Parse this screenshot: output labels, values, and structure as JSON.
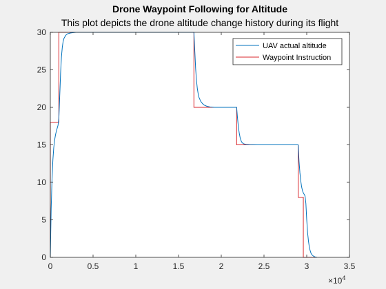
{
  "chart_data": {
    "type": "line",
    "title": "Drone Waypoint Following for Altitude",
    "subtitle": "This plot depicts the drone altitude change history during its flight",
    "xlabel": "",
    "ylabel": "",
    "x_exponent_label": "×10",
    "x_exponent_power": "4",
    "xlim": [
      0,
      35000
    ],
    "ylim": [
      0,
      30
    ],
    "x_tick_values": [
      0,
      5000,
      10000,
      15000,
      20000,
      25000,
      30000,
      35000
    ],
    "x_tick_labels": [
      "0",
      "0.5",
      "1",
      "1.5",
      "2",
      "2.5",
      "3",
      "3.5"
    ],
    "y_tick_values": [
      0,
      5,
      10,
      15,
      20,
      25,
      30
    ],
    "y_tick_labels": [
      "0",
      "5",
      "10",
      "15",
      "20",
      "25",
      "30"
    ],
    "grid": false,
    "legend_position": "top-right",
    "series": [
      {
        "name": "UAV actual altitude",
        "color": "#0072bd",
        "x": [
          0,
          100,
          200,
          300,
          400,
          500,
          600,
          700,
          800,
          900,
          1000,
          1100,
          1200,
          1300,
          1400,
          1500,
          1600,
          1800,
          2000,
          2300,
          2600,
          3000,
          4000,
          16800,
          16900,
          17000,
          17100,
          17200,
          17300,
          17400,
          17600,
          17800,
          18000,
          18300,
          18700,
          19200,
          21800,
          21900,
          22000,
          22100,
          22200,
          22300,
          22400,
          22600,
          22800,
          23000,
          23300,
          23700,
          24200,
          29000,
          29100,
          29200,
          29300,
          29400,
          29500,
          29600,
          29800,
          29900,
          30000,
          30100,
          30200,
          30300,
          30400,
          30500,
          30600,
          30800,
          31000,
          31200
        ],
        "y": [
          0,
          6.5,
          10.5,
          13,
          14.6,
          15.6,
          16.3,
          16.8,
          17.2,
          17.6,
          18.5,
          21.5,
          24.5,
          26.7,
          28,
          28.8,
          29.2,
          29.6,
          29.8,
          29.9,
          29.95,
          30,
          30,
          30,
          27.6,
          25.2,
          23.6,
          22.5,
          21.8,
          21.3,
          20.8,
          20.5,
          20.3,
          20.15,
          20.05,
          20,
          20,
          18.6,
          17.4,
          16.6,
          16.0,
          15.6,
          15.35,
          15.15,
          15.08,
          15.04,
          15.02,
          15.01,
          15,
          15,
          12.8,
          11.3,
          10.2,
          9.4,
          8.9,
          8.6,
          8.2,
          7.2,
          5.0,
          3.3,
          2.2,
          1.4,
          0.9,
          0.55,
          0.35,
          0.15,
          0.05,
          0
        ]
      },
      {
        "name": "Waypoint Instruction",
        "color": "#d9262b",
        "x": [
          0,
          0,
          1000,
          1000,
          16800,
          16800,
          21800,
          21800,
          29000,
          29000,
          29600,
          29600,
          31000
        ],
        "y": [
          0,
          18,
          18,
          30,
          30,
          20,
          20,
          15,
          15,
          8,
          8,
          0,
          0
        ]
      }
    ]
  }
}
